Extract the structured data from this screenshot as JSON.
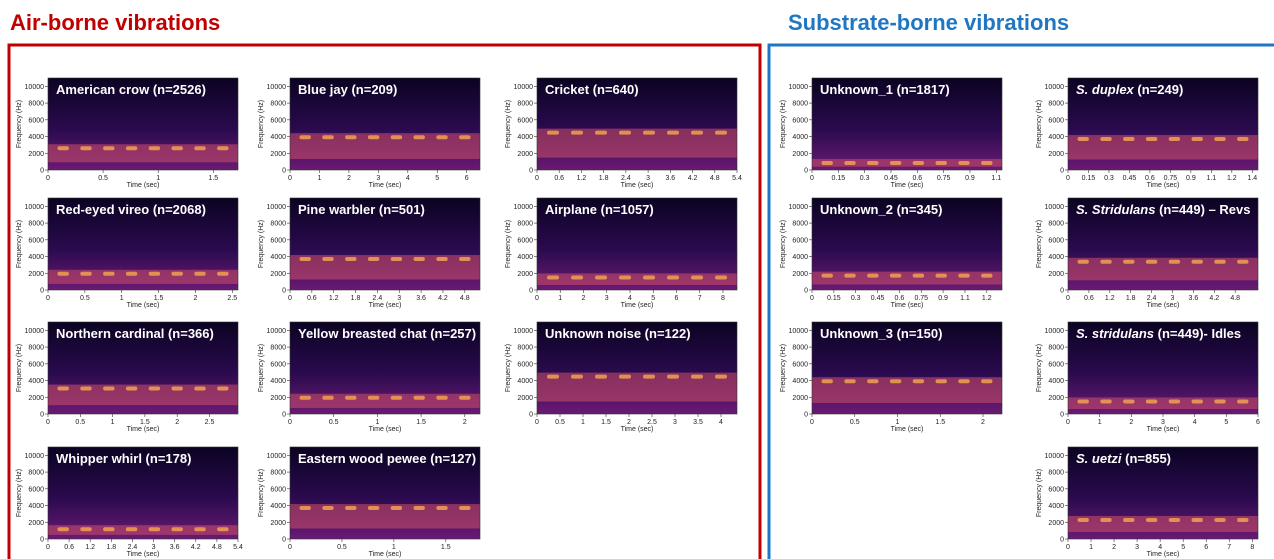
{
  "headings": {
    "air": "Air-borne vibrations",
    "substrate": "Substrate-borne vibrations"
  },
  "y_axis": {
    "label": "Frequency (Hz)",
    "ticks": [
      0,
      2000,
      4000,
      6000,
      8000,
      10000
    ]
  },
  "x_axis_label": "Time (sec)",
  "panels": [
    {
      "title": "American crow (n=2526)",
      "xticks": [
        0,
        0.5,
        1,
        1.5
      ]
    },
    {
      "title": "Blue jay (n=209)",
      "xticks": [
        0,
        1,
        2,
        3,
        4,
        5,
        6
      ]
    },
    {
      "title": "Cricket (n=640)",
      "xticks": [
        0,
        0.6,
        1.2,
        1.8,
        2.4,
        3,
        3.6,
        4.2,
        4.8,
        5.4
      ]
    },
    {
      "title": "Red-eyed vireo (n=2068)",
      "xticks": [
        0,
        0.5,
        1,
        1.5,
        2,
        2.5
      ]
    },
    {
      "title": "Pine warbler (n=501)",
      "xticks": [
        0,
        0.6,
        1.2,
        1.8,
        2.4,
        3,
        3.6,
        4.2,
        4.8
      ]
    },
    {
      "title": "Airplane (n=1057)",
      "xticks": [
        0,
        1,
        2,
        3,
        4,
        5,
        6,
        7,
        8
      ]
    },
    {
      "title": "Northern cardinal (n=366)",
      "xticks": [
        0,
        0.5,
        1,
        1.5,
        2,
        2.5
      ]
    },
    {
      "title": "Yellow breasted chat (n=257)",
      "xticks": [
        0,
        0.5,
        1,
        1.5,
        2
      ]
    },
    {
      "title": "Unknown noise (n=122)",
      "xticks": [
        0,
        0.5,
        1,
        1.5,
        2,
        2.5,
        3,
        3.5,
        4
      ]
    },
    {
      "title": "Whipper whirl (n=178)",
      "xticks": [
        0,
        0.6,
        1.2,
        1.8,
        2.4,
        3,
        3.6,
        4.2,
        4.8,
        5.4
      ]
    },
    {
      "title": "Eastern wood pewee (n=127)",
      "xticks": [
        0,
        0.5,
        1,
        1.5
      ]
    },
    {
      "title": "Unknown_1 (n=1817)",
      "xticks": [
        0,
        0.15,
        0.3,
        0.45,
        0.6,
        0.75,
        0.9,
        1.1
      ]
    },
    {
      "italic": "S. duplex",
      "title": " (n=249)",
      "xticks": [
        0,
        0.15,
        0.3,
        0.45,
        0.6,
        0.75,
        0.9,
        1.1,
        1.2,
        1.4
      ]
    },
    {
      "title": "Unknown_2 (n=345)",
      "xticks": [
        0,
        0.15,
        0.3,
        0.45,
        0.6,
        0.75,
        0.9,
        1.1,
        1.2
      ]
    },
    {
      "italic": "S. Stridulans",
      "title": " (n=449) – Revs",
      "xticks": [
        0,
        0.6,
        1.2,
        1.8,
        2.4,
        3,
        3.6,
        4.2,
        4.8
      ]
    },
    {
      "title": "Unknown_3 (n=150)",
      "xticks": [
        0,
        0.5,
        1,
        1.5,
        2
      ]
    },
    {
      "italic": "S. stridulans",
      "title": " (n=449)- Idles",
      "xticks": [
        0,
        1,
        2,
        3,
        4,
        5,
        6
      ]
    },
    {
      "italic": "S. uetzi",
      "title": " (n=855)",
      "xticks": [
        0,
        1,
        2,
        3,
        4,
        5,
        6,
        7,
        8
      ]
    }
  ]
}
